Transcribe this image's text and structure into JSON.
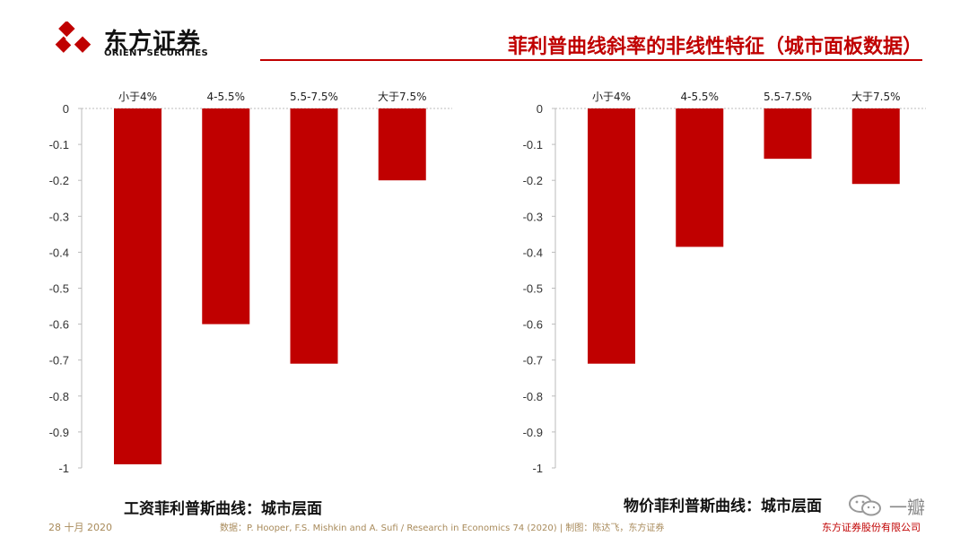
{
  "header": {
    "logo_cn": "东方证券",
    "logo_en": "ORIENT SECURITIES",
    "title": "菲利普曲线斜率的非线性特征（城市面板数据）",
    "accent_color": "#c00000"
  },
  "chart_data": [
    {
      "type": "bar",
      "title": "工资菲利普斯曲线：城市层面",
      "categories": [
        "小于4%",
        "4-5.5%",
        "5.5-7.5%",
        "大于7.5%"
      ],
      "values": [
        -0.99,
        -0.6,
        -0.71,
        -0.2
      ],
      "ylim": [
        -1,
        0
      ],
      "yticks": [
        "0",
        "-0.1",
        "-0.2",
        "-0.3",
        "-0.4",
        "-0.5",
        "-0.6",
        "-0.7",
        "-0.8",
        "-0.9",
        "-1"
      ],
      "bar_color": "#c00000",
      "grid": false
    },
    {
      "type": "bar",
      "title": "物价菲利普斯曲线：城市层面",
      "categories": [
        "小于4%",
        "4-5.5%",
        "5.5-7.5%",
        "大于7.5%"
      ],
      "values": [
        -0.71,
        -0.385,
        -0.14,
        -0.21
      ],
      "ylim": [
        -1,
        0
      ],
      "yticks": [
        "0",
        "-0.1",
        "-0.2",
        "-0.3",
        "-0.4",
        "-0.5",
        "-0.6",
        "-0.7",
        "-0.8",
        "-0.9",
        "-1"
      ],
      "bar_color": "#c00000",
      "grid": false
    }
  ],
  "footer": {
    "date": "28 十月 2020",
    "source": "数据：P. Hooper, F.S. Mishkin and A. Sufi / Research in Economics 74 (2020)  | 制图：陈达飞，东方证券",
    "company": "东方证券股份有限公司"
  },
  "watermark": {
    "text": "一瓣",
    "icon": "wechat-icon"
  }
}
